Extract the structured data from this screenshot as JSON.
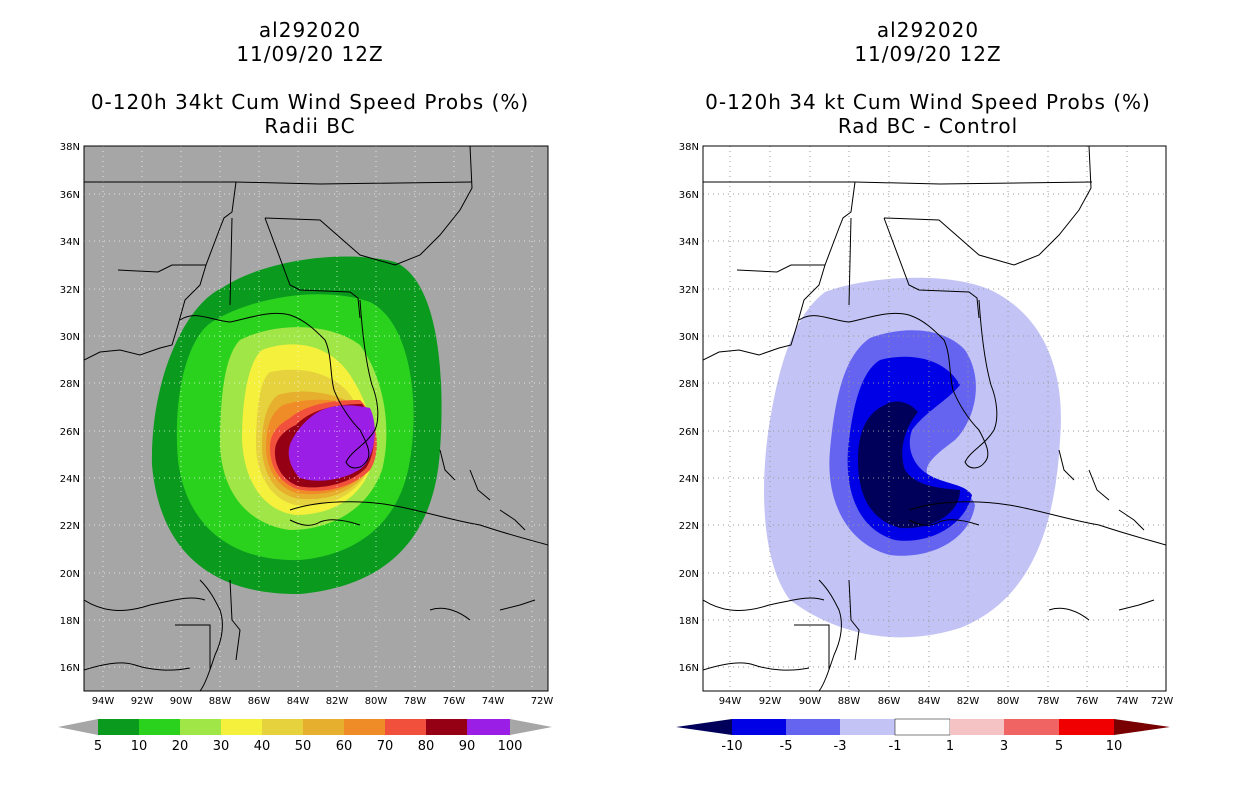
{
  "panels": [
    {
      "title_lines": [
        "al292020",
        "11/09/20 12Z"
      ],
      "subtitle_lines": [
        "0-120h 34kt Cum Wind Speed Probs (%)",
        "Radii BC"
      ],
      "lat_labels": [
        "38N",
        "36N",
        "34N",
        "32N",
        "30N",
        "28N",
        "26N",
        "24N",
        "22N",
        "20N",
        "18N",
        "16N"
      ],
      "lon_labels": [
        "94W",
        "92W",
        "90W",
        "88W",
        "86W",
        "84W",
        "82W",
        "80W",
        "78W",
        "76W",
        "74W",
        "72W"
      ],
      "colorbar": {
        "colors": [
          "#a6a6a6",
          "#0a9a1e",
          "#2ad21e",
          "#a0e646",
          "#f5f03c",
          "#e6d23c",
          "#e6af2d",
          "#f08c28",
          "#f0503c",
          "#960014",
          "#9b1ee6",
          "#a6a6a6"
        ],
        "labels": [
          "5",
          "10",
          "20",
          "30",
          "40",
          "50",
          "60",
          "70",
          "80",
          "90",
          "100"
        ]
      }
    },
    {
      "title_lines": [
        "al292020",
        "11/09/20 12Z"
      ],
      "subtitle_lines": [
        "0-120h 34 kt Cum Wind Speed Probs (%)",
        "Rad BC - Control"
      ],
      "lat_labels": [
        "38N",
        "36N",
        "34N",
        "32N",
        "30N",
        "28N",
        "26N",
        "24N",
        "22N",
        "20N",
        "18N",
        "16N"
      ],
      "lon_labels": [
        "94W",
        "92W",
        "90W",
        "88W",
        "86W",
        "84W",
        "82W",
        "80W",
        "78W",
        "76W",
        "74W",
        "72W"
      ],
      "colorbar": {
        "colors": [
          "#00005a",
          "#0000e6",
          "#6464f0",
          "#c3c3f5",
          "#ffffff",
          "#f5c3c3",
          "#f06464",
          "#f00000",
          "#780000"
        ],
        "labels": [
          "-10",
          "-5",
          "-3",
          "-1",
          "1",
          "3",
          "5",
          "10"
        ]
      }
    }
  ]
}
